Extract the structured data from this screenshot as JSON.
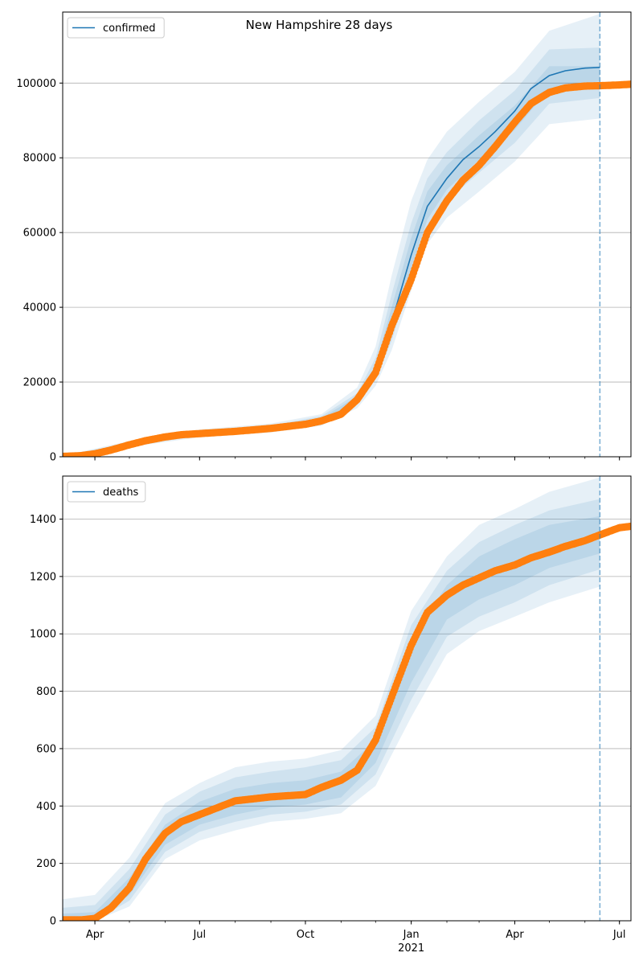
{
  "title": "New Hampshire 28 days",
  "colors": {
    "model": "#1f77b4",
    "observed": "#ff7f0e",
    "grid": "#b0b0b0",
    "band": "#1f77b4"
  },
  "shared_x": {
    "tick_labels": [
      {
        "date": "2020-04-01",
        "label": "Apr"
      },
      {
        "date": "2020-07-01",
        "label": "Jul"
      },
      {
        "date": "2020-10-01",
        "label": "Oct"
      },
      {
        "date": "2021-01-01",
        "label": "Jan"
      },
      {
        "date": "2021-04-01",
        "label": "Apr"
      },
      {
        "date": "2021-07-01",
        "label": "Jul"
      }
    ],
    "year_label": "2021",
    "xlim": [
      "2020-03-04",
      "2021-07-11"
    ],
    "forecast_start": "2021-06-14"
  },
  "chart_data": [
    {
      "type": "line",
      "title": "New Hampshire 28 days",
      "legend": [
        "confirmed"
      ],
      "legend_position": "upper-left",
      "grid": "y",
      "ylim": [
        0,
        119000
      ],
      "yticks": [
        0,
        20000,
        40000,
        60000,
        80000,
        100000
      ],
      "model": {
        "name": "confirmed",
        "x": [
          "2020-03-04",
          "2020-03-20",
          "2020-04-01",
          "2020-04-15",
          "2020-05-01",
          "2020-05-15",
          "2020-06-01",
          "2020-06-15",
          "2020-07-01",
          "2020-08-01",
          "2020-09-01",
          "2020-10-01",
          "2020-10-15",
          "2020-11-01",
          "2020-11-15",
          "2020-12-01",
          "2020-12-15",
          "2021-01-01",
          "2021-01-15",
          "2021-02-01",
          "2021-02-15",
          "2021-03-01",
          "2021-03-15",
          "2021-04-01",
          "2021-04-15",
          "2021-05-01",
          "2021-05-15",
          "2021-06-01",
          "2021-06-14"
        ],
        "y": [
          100,
          300,
          800,
          1800,
          3200,
          4300,
          5300,
          5900,
          6200,
          6800,
          7600,
          8700,
          9700,
          11500,
          15500,
          23000,
          36000,
          54000,
          67000,
          74500,
          79500,
          83000,
          87000,
          92500,
          98500,
          102000,
          103300,
          104000,
          104200
        ]
      },
      "bands": [
        {
          "x": [
            "2020-03-04",
            "2020-05-01",
            "2020-07-01",
            "2020-09-01",
            "2020-10-15",
            "2020-11-15",
            "2020-12-01",
            "2020-12-15",
            "2021-01-01",
            "2021-01-15",
            "2021-02-01",
            "2021-03-01",
            "2021-04-01",
            "2021-05-01",
            "2021-06-14"
          ],
          "lower": [
            0,
            2600,
            5200,
            6500,
            8300,
            13000,
            19000,
            28500,
            44500,
            57000,
            64000,
            71000,
            79000,
            89000,
            90500
          ],
          "upper": [
            300,
            4200,
            7300,
            8900,
            11400,
            18500,
            29500,
            48500,
            68500,
            79500,
            87000,
            95000,
            103000,
            114000,
            118500
          ]
        },
        {
          "x": [
            "2020-03-04",
            "2020-05-01",
            "2020-07-01",
            "2020-09-01",
            "2020-10-15",
            "2020-11-15",
            "2020-12-01",
            "2020-12-15",
            "2021-01-01",
            "2021-01-15",
            "2021-02-01",
            "2021-03-01",
            "2021-04-01",
            "2021-05-01",
            "2021-06-14"
          ],
          "lower": [
            0,
            2900,
            5600,
            6900,
            8800,
            14000,
            21000,
            31000,
            48000,
            61000,
            68500,
            76000,
            84000,
            94500,
            96000
          ],
          "upper": [
            200,
            3800,
            6900,
            8400,
            10900,
            17000,
            26500,
            43500,
            62500,
            74500,
            81500,
            90000,
            98000,
            109000,
            109500
          ]
        },
        {
          "x": [
            "2020-03-04",
            "2020-05-01",
            "2020-07-01",
            "2020-09-01",
            "2020-10-15",
            "2020-11-15",
            "2020-12-01",
            "2020-12-15",
            "2021-01-01",
            "2021-01-15",
            "2021-02-01",
            "2021-03-01",
            "2021-04-01",
            "2021-05-01",
            "2021-06-14"
          ],
          "lower": [
            0,
            3100,
            5900,
            7200,
            9200,
            14800,
            22000,
            33000,
            50500,
            63500,
            71500,
            79500,
            87500,
            98500,
            100500
          ],
          "upper": [
            150,
            3500,
            6500,
            8000,
            10400,
            16200,
            24500,
            40000,
            58500,
            71000,
            78000,
            86000,
            94000,
            104500,
            104500
          ]
        }
      ],
      "observed": {
        "x": [
          "2020-03-04",
          "2020-03-20",
          "2020-04-01",
          "2020-04-15",
          "2020-05-01",
          "2020-05-15",
          "2020-06-01",
          "2020-06-15",
          "2020-07-01",
          "2020-08-01",
          "2020-09-01",
          "2020-10-01",
          "2020-10-15",
          "2020-11-01",
          "2020-11-15",
          "2020-12-01",
          "2020-12-15",
          "2021-01-01",
          "2021-01-15",
          "2021-02-01",
          "2021-02-15",
          "2021-03-01",
          "2021-03-15",
          "2021-04-01",
          "2021-04-15",
          "2021-05-01",
          "2021-05-15",
          "2021-06-01",
          "2021-06-14",
          "2021-07-01",
          "2021-07-11"
        ],
        "y": [
          100,
          300,
          800,
          1800,
          3200,
          4300,
          5300,
          5900,
          6200,
          6800,
          7600,
          8700,
          9600,
          11400,
          15300,
          22500,
          35000,
          47500,
          60000,
          68500,
          74000,
          78000,
          83000,
          89500,
          94500,
          97500,
          98700,
          99200,
          99300,
          99500,
          99700
        ]
      }
    },
    {
      "type": "line",
      "legend": [
        "deaths"
      ],
      "legend_position": "upper-left",
      "grid": "y",
      "ylim": [
        0,
        1550
      ],
      "yticks": [
        0,
        200,
        400,
        600,
        800,
        1000,
        1200,
        1400
      ],
      "model": {
        "name": "deaths",
        "x": [
          "2020-03-04",
          "2020-03-20",
          "2020-04-01",
          "2020-04-15",
          "2020-05-01",
          "2020-05-15",
          "2020-06-01",
          "2020-06-15",
          "2020-07-01",
          "2020-08-01",
          "2020-09-01",
          "2020-10-01",
          "2020-10-15",
          "2020-11-01",
          "2020-11-15",
          "2020-12-01",
          "2020-12-15",
          "2021-01-01",
          "2021-01-15",
          "2021-02-01",
          "2021-02-15",
          "2021-03-01",
          "2021-03-15",
          "2021-04-01",
          "2021-04-15",
          "2021-05-01",
          "2021-05-15",
          "2021-06-01",
          "2021-06-14"
        ],
        "y": [
          3,
          3,
          8,
          45,
          115,
          215,
          305,
          345,
          370,
          418,
          432,
          440,
          465,
          490,
          525,
          630,
          780,
          960,
          1075,
          1135,
          1170,
          1195,
          1220,
          1240,
          1265,
          1285,
          1305,
          1325,
          1340
        ]
      },
      "bands": [
        {
          "x": [
            "2020-03-04",
            "2020-04-01",
            "2020-05-01",
            "2020-06-01",
            "2020-07-01",
            "2020-08-01",
            "2020-09-01",
            "2020-10-01",
            "2020-11-01",
            "2020-12-01",
            "2021-01-01",
            "2021-02-01",
            "2021-03-01",
            "2021-04-01",
            "2021-05-01",
            "2021-06-14"
          ],
          "lower": [
            0,
            0,
            50,
            215,
            280,
            315,
            345,
            355,
            375,
            470,
            710,
            930,
            1010,
            1060,
            1110,
            1165
          ],
          "upper": [
            75,
            90,
            220,
            410,
            480,
            535,
            555,
            565,
            595,
            715,
            1080,
            1270,
            1380,
            1435,
            1495,
            1545
          ]
        },
        {
          "x": [
            "2020-03-04",
            "2020-04-01",
            "2020-05-01",
            "2020-06-01",
            "2020-07-01",
            "2020-08-01",
            "2020-09-01",
            "2020-10-01",
            "2020-11-01",
            "2020-12-01",
            "2021-01-01",
            "2021-02-01",
            "2021-03-01",
            "2021-04-01",
            "2021-05-01",
            "2021-06-14"
          ],
          "lower": [
            0,
            0,
            70,
            240,
            310,
            345,
            370,
            380,
            405,
            510,
            770,
            990,
            1060,
            1110,
            1170,
            1225
          ],
          "upper": [
            45,
            55,
            180,
            370,
            450,
            500,
            520,
            535,
            560,
            675,
            1030,
            1220,
            1320,
            1380,
            1430,
            1470
          ]
        },
        {
          "x": [
            "2020-03-04",
            "2020-04-01",
            "2020-05-01",
            "2020-06-01",
            "2020-07-01",
            "2020-08-01",
            "2020-09-01",
            "2020-10-01",
            "2020-11-01",
            "2020-12-01",
            "2021-01-01",
            "2021-02-01",
            "2021-03-01",
            "2021-04-01",
            "2021-05-01",
            "2021-06-14"
          ],
          "lower": [
            0,
            0,
            90,
            265,
            335,
            370,
            395,
            405,
            430,
            550,
            830,
            1050,
            1120,
            1170,
            1230,
            1280
          ],
          "upper": [
            25,
            30,
            150,
            335,
            415,
            460,
            480,
            490,
            520,
            630,
            980,
            1170,
            1270,
            1330,
            1380,
            1410
          ]
        }
      ],
      "observed": {
        "x": [
          "2020-03-04",
          "2020-03-20",
          "2020-04-01",
          "2020-04-15",
          "2020-05-01",
          "2020-05-15",
          "2020-06-01",
          "2020-06-15",
          "2020-07-01",
          "2020-08-01",
          "2020-09-01",
          "2020-10-01",
          "2020-10-15",
          "2020-11-01",
          "2020-11-15",
          "2020-12-01",
          "2020-12-15",
          "2021-01-01",
          "2021-01-15",
          "2021-02-01",
          "2021-02-15",
          "2021-03-01",
          "2021-03-15",
          "2021-04-01",
          "2021-04-15",
          "2021-05-01",
          "2021-05-15",
          "2021-06-01",
          "2021-06-14",
          "2021-07-01",
          "2021-07-11"
        ],
        "y": [
          3,
          3,
          8,
          45,
          115,
          215,
          305,
          345,
          370,
          418,
          432,
          440,
          465,
          490,
          525,
          630,
          780,
          960,
          1075,
          1135,
          1170,
          1195,
          1220,
          1240,
          1265,
          1285,
          1305,
          1325,
          1345,
          1370,
          1375
        ]
      }
    }
  ]
}
